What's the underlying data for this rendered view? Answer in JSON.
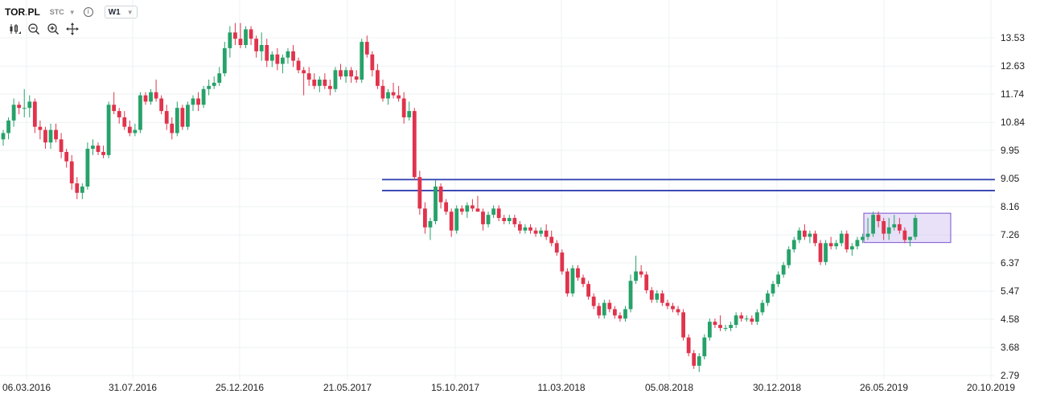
{
  "header": {
    "symbol": "TOR.PL",
    "type": "STC",
    "interval": "W1",
    "icons": [
      "info-icon",
      "candles-icon",
      "zoom-out-icon",
      "zoom-in-icon",
      "move-icon"
    ]
  },
  "chart_data": {
    "type": "candlestick",
    "title": "",
    "y_ticks": [
      13.53,
      12.63,
      11.74,
      10.84,
      9.95,
      9.05,
      8.16,
      7.26,
      6.37,
      5.47,
      4.58,
      3.68,
      2.79
    ],
    "y_tick_labels": [
      "13.53",
      "12.63",
      "11.74",
      "10.84",
      "9.95",
      "9.05",
      "8.16",
      "7.26",
      "6.37",
      "5.47",
      "4.58",
      "3.68",
      "2.79"
    ],
    "ylim": [
      2.6,
      14.2
    ],
    "x_tick_labels": [
      "06.03.2016",
      "31.07.2016",
      "25.12.2016",
      "21.05.2017",
      "15.10.2017",
      "11.03.2018",
      "05.08.2018",
      "30.12.2018",
      "26.05.2019",
      "20.10.2019"
    ],
    "colors": {
      "up": "#26a269",
      "down": "#e0334c",
      "hline": "#2f3fb0",
      "box_fill": "#d9cdf3",
      "box_stroke": "#8c6bd6",
      "grid": "#eef0f3"
    },
    "horizontal_lines": [
      9.02,
      8.67
    ],
    "highlight_box": {
      "y_range": [
        7.02,
        7.95
      ]
    },
    "candles": [
      [
        10.3,
        10.6,
        10.1,
        10.5
      ],
      [
        10.5,
        11.0,
        10.3,
        10.9
      ],
      [
        10.9,
        11.6,
        10.7,
        11.4
      ],
      [
        11.4,
        11.5,
        11.1,
        11.3
      ],
      [
        11.3,
        11.9,
        11.0,
        11.3
      ],
      [
        11.3,
        11.7,
        11.0,
        11.5
      ],
      [
        11.5,
        11.6,
        10.5,
        10.7
      ],
      [
        10.7,
        10.9,
        10.3,
        10.6
      ],
      [
        10.6,
        10.7,
        10.0,
        10.2
      ],
      [
        10.2,
        10.8,
        10.0,
        10.6
      ],
      [
        10.6,
        10.8,
        10.2,
        10.3
      ],
      [
        10.3,
        10.5,
        9.7,
        9.9
      ],
      [
        9.9,
        10.0,
        9.4,
        9.6
      ],
      [
        9.6,
        9.8,
        8.7,
        8.9
      ],
      [
        8.9,
        9.1,
        8.4,
        8.6
      ],
      [
        8.6,
        8.9,
        8.4,
        8.8
      ],
      [
        8.8,
        10.2,
        8.7,
        10.0
      ],
      [
        10.0,
        10.3,
        9.8,
        10.1
      ],
      [
        10.1,
        10.2,
        9.8,
        9.9
      ],
      [
        9.9,
        10.1,
        9.7,
        9.8
      ],
      [
        9.8,
        11.5,
        9.7,
        11.4
      ],
      [
        11.4,
        11.8,
        11.1,
        11.2
      ],
      [
        11.2,
        11.3,
        10.8,
        11.0
      ],
      [
        11.0,
        11.2,
        10.6,
        10.7
      ],
      [
        10.7,
        10.9,
        10.4,
        10.5
      ],
      [
        10.5,
        10.8,
        10.4,
        10.6
      ],
      [
        10.6,
        11.8,
        10.5,
        11.7
      ],
      [
        11.7,
        11.8,
        11.4,
        11.5
      ],
      [
        11.5,
        11.9,
        11.4,
        11.8
      ],
      [
        11.8,
        12.2,
        11.5,
        11.6
      ],
      [
        11.6,
        11.7,
        11.1,
        11.2
      ],
      [
        11.2,
        11.4,
        10.6,
        10.8
      ],
      [
        10.8,
        11.0,
        10.3,
        10.5
      ],
      [
        10.5,
        11.5,
        10.4,
        11.3
      ],
      [
        11.3,
        11.4,
        10.6,
        10.7
      ],
      [
        10.7,
        11.5,
        10.6,
        11.4
      ],
      [
        11.4,
        11.7,
        11.2,
        11.6
      ],
      [
        11.6,
        11.8,
        11.2,
        11.4
      ],
      [
        11.4,
        12.0,
        11.3,
        11.9
      ],
      [
        11.9,
        12.2,
        11.7,
        12.0
      ],
      [
        12.0,
        12.3,
        11.9,
        12.1
      ],
      [
        12.1,
        12.6,
        12.0,
        12.4
      ],
      [
        12.4,
        13.4,
        12.3,
        13.2
      ],
      [
        13.2,
        13.9,
        12.9,
        13.7
      ],
      [
        13.7,
        14.0,
        13.3,
        13.5
      ],
      [
        13.5,
        14.0,
        13.2,
        13.3
      ],
      [
        13.3,
        13.9,
        13.2,
        13.8
      ],
      [
        13.8,
        13.9,
        13.3,
        13.5
      ],
      [
        13.5,
        13.6,
        12.9,
        13.1
      ],
      [
        13.1,
        13.7,
        12.8,
        13.3
      ],
      [
        13.3,
        13.5,
        12.6,
        12.8
      ],
      [
        12.8,
        13.1,
        12.6,
        13.0
      ],
      [
        13.0,
        13.2,
        12.5,
        12.7
      ],
      [
        12.7,
        13.0,
        12.4,
        12.9
      ],
      [
        12.9,
        13.2,
        12.7,
        13.1
      ],
      [
        13.1,
        13.3,
        12.6,
        12.8
      ],
      [
        12.8,
        12.9,
        12.4,
        12.5
      ],
      [
        12.5,
        12.6,
        11.7,
        12.4
      ],
      [
        12.4,
        12.6,
        12.0,
        12.2
      ],
      [
        12.2,
        12.4,
        11.9,
        12.0
      ],
      [
        12.0,
        12.3,
        11.8,
        12.2
      ],
      [
        12.2,
        12.4,
        11.9,
        12.0
      ],
      [
        12.0,
        12.2,
        11.7,
        11.9
      ],
      [
        11.9,
        12.6,
        11.8,
        12.5
      ],
      [
        12.5,
        12.7,
        12.2,
        12.3
      ],
      [
        12.3,
        12.6,
        12.1,
        12.5
      ],
      [
        12.5,
        12.6,
        12.1,
        12.3
      ],
      [
        12.3,
        12.5,
        12.1,
        12.2
      ],
      [
        12.2,
        13.5,
        12.1,
        13.4
      ],
      [
        13.4,
        13.6,
        12.9,
        13.0
      ],
      [
        13.0,
        13.1,
        12.3,
        12.5
      ],
      [
        12.5,
        12.7,
        11.9,
        12.0
      ],
      [
        12.0,
        12.2,
        11.5,
        11.6
      ],
      [
        11.6,
        11.9,
        11.4,
        11.8
      ],
      [
        11.8,
        12.1,
        11.6,
        11.7
      ],
      [
        11.7,
        12.0,
        11.5,
        11.6
      ],
      [
        11.6,
        11.8,
        10.8,
        11.0
      ],
      [
        11.0,
        11.5,
        10.9,
        11.2
      ],
      [
        11.2,
        11.3,
        9.0,
        9.1
      ],
      [
        9.1,
        9.3,
        7.9,
        8.1
      ],
      [
        8.1,
        8.3,
        7.3,
        7.5
      ],
      [
        7.5,
        7.8,
        7.1,
        7.7
      ],
      [
        7.7,
        9.0,
        7.6,
        8.8
      ],
      [
        8.8,
        8.9,
        8.1,
        8.3
      ],
      [
        8.3,
        8.4,
        7.9,
        8.0
      ],
      [
        8.0,
        8.1,
        7.2,
        7.4
      ],
      [
        7.4,
        8.2,
        7.3,
        8.1
      ],
      [
        8.1,
        8.2,
        7.9,
        8.0
      ],
      [
        8.0,
        8.3,
        7.8,
        8.2
      ],
      [
        8.2,
        8.4,
        8.0,
        8.1
      ],
      [
        8.1,
        8.5,
        8.0,
        8.0
      ],
      [
        8.0,
        8.1,
        7.4,
        7.6
      ],
      [
        7.6,
        8.0,
        7.5,
        7.9
      ],
      [
        7.9,
        8.2,
        7.8,
        8.1
      ],
      [
        8.1,
        8.2,
        7.7,
        7.8
      ],
      [
        7.8,
        7.9,
        7.6,
        7.7
      ],
      [
        7.7,
        7.9,
        7.6,
        7.8
      ],
      [
        7.8,
        7.9,
        7.5,
        7.6
      ],
      [
        7.6,
        7.7,
        7.3,
        7.4
      ],
      [
        7.4,
        7.6,
        7.3,
        7.5
      ],
      [
        7.5,
        7.6,
        7.3,
        7.4
      ],
      [
        7.4,
        7.5,
        7.2,
        7.3
      ],
      [
        7.3,
        7.5,
        7.2,
        7.4
      ],
      [
        7.4,
        7.6,
        7.1,
        7.2
      ],
      [
        7.2,
        7.4,
        6.9,
        7.0
      ],
      [
        7.0,
        7.1,
        6.6,
        6.7
      ],
      [
        6.7,
        6.8,
        6.0,
        6.1
      ],
      [
        6.1,
        6.2,
        5.3,
        5.4
      ],
      [
        5.4,
        6.3,
        5.3,
        6.2
      ],
      [
        6.2,
        6.3,
        5.8,
        5.9
      ],
      [
        5.9,
        6.0,
        5.6,
        5.7
      ],
      [
        5.7,
        5.8,
        5.2,
        5.3
      ],
      [
        5.3,
        5.4,
        4.9,
        5.0
      ],
      [
        5.0,
        5.1,
        4.6,
        4.7
      ],
      [
        4.7,
        5.2,
        4.6,
        5.1
      ],
      [
        5.1,
        5.2,
        4.8,
        4.9
      ],
      [
        4.9,
        5.0,
        4.6,
        4.7
      ],
      [
        4.7,
        4.8,
        4.5,
        4.6
      ],
      [
        4.6,
        5.0,
        4.5,
        4.9
      ],
      [
        4.9,
        6.0,
        4.8,
        5.8
      ],
      [
        5.8,
        6.6,
        5.7,
        6.1
      ],
      [
        6.1,
        6.3,
        5.9,
        6.0
      ],
      [
        6.0,
        6.1,
        5.4,
        5.5
      ],
      [
        5.5,
        5.6,
        5.1,
        5.2
      ],
      [
        5.2,
        5.5,
        5.1,
        5.4
      ],
      [
        5.4,
        5.5,
        5.0,
        5.1
      ],
      [
        5.1,
        5.2,
        4.9,
        5.0
      ],
      [
        5.0,
        5.1,
        4.8,
        4.9
      ],
      [
        4.9,
        5.0,
        4.7,
        4.8
      ],
      [
        4.8,
        4.9,
        3.9,
        4.0
      ],
      [
        4.0,
        4.1,
        3.4,
        3.5
      ],
      [
        3.5,
        3.6,
        3.0,
        3.1
      ],
      [
        3.1,
        3.5,
        2.9,
        3.4
      ],
      [
        3.4,
        4.1,
        3.3,
        4.0
      ],
      [
        4.0,
        4.6,
        3.9,
        4.5
      ],
      [
        4.5,
        4.6,
        4.3,
        4.4
      ],
      [
        4.4,
        4.7,
        4.2,
        4.3
      ],
      [
        4.3,
        4.4,
        4.2,
        4.3
      ],
      [
        4.3,
        4.5,
        4.2,
        4.4
      ],
      [
        4.4,
        4.8,
        4.3,
        4.7
      ],
      [
        4.7,
        4.8,
        4.5,
        4.6
      ],
      [
        4.6,
        4.7,
        4.5,
        4.6
      ],
      [
        4.6,
        4.7,
        4.4,
        4.5
      ],
      [
        4.5,
        4.9,
        4.4,
        4.8
      ],
      [
        4.8,
        5.2,
        4.7,
        5.1
      ],
      [
        5.1,
        5.5,
        5.0,
        5.4
      ],
      [
        5.4,
        5.8,
        5.3,
        5.7
      ],
      [
        5.7,
        6.1,
        5.6,
        6.0
      ],
      [
        6.0,
        6.4,
        5.9,
        6.3
      ],
      [
        6.3,
        6.9,
        6.2,
        6.8
      ],
      [
        6.8,
        7.2,
        6.7,
        7.1
      ],
      [
        7.1,
        7.5,
        7.0,
        7.4
      ],
      [
        7.4,
        7.6,
        7.1,
        7.2
      ],
      [
        7.2,
        7.4,
        7.0,
        7.3
      ],
      [
        7.3,
        7.4,
        6.9,
        7.0
      ],
      [
        7.0,
        7.1,
        6.3,
        6.4
      ],
      [
        6.4,
        7.1,
        6.3,
        7.0
      ],
      [
        7.0,
        7.2,
        6.8,
        6.9
      ],
      [
        6.9,
        7.1,
        6.8,
        7.0
      ],
      [
        7.0,
        7.4,
        6.9,
        7.3
      ],
      [
        7.3,
        7.4,
        6.7,
        6.8
      ],
      [
        6.8,
        7.0,
        6.6,
        6.9
      ],
      [
        6.9,
        7.2,
        6.8,
        7.1
      ],
      [
        7.1,
        7.3,
        7.0,
        7.2
      ],
      [
        7.2,
        7.8,
        7.1,
        7.3
      ],
      [
        7.3,
        8.0,
        7.2,
        7.9
      ],
      [
        7.9,
        8.0,
        7.5,
        7.7
      ],
      [
        7.7,
        7.8,
        7.1,
        7.3
      ],
      [
        7.3,
        7.8,
        7.1,
        7.5
      ],
      [
        7.5,
        7.9,
        7.4,
        7.6
      ],
      [
        7.6,
        7.8,
        7.3,
        7.4
      ],
      [
        7.4,
        7.5,
        7.0,
        7.1
      ],
      [
        7.1,
        7.2,
        6.9,
        7.2
      ],
      [
        7.2,
        7.9,
        7.1,
        7.8
      ]
    ]
  }
}
